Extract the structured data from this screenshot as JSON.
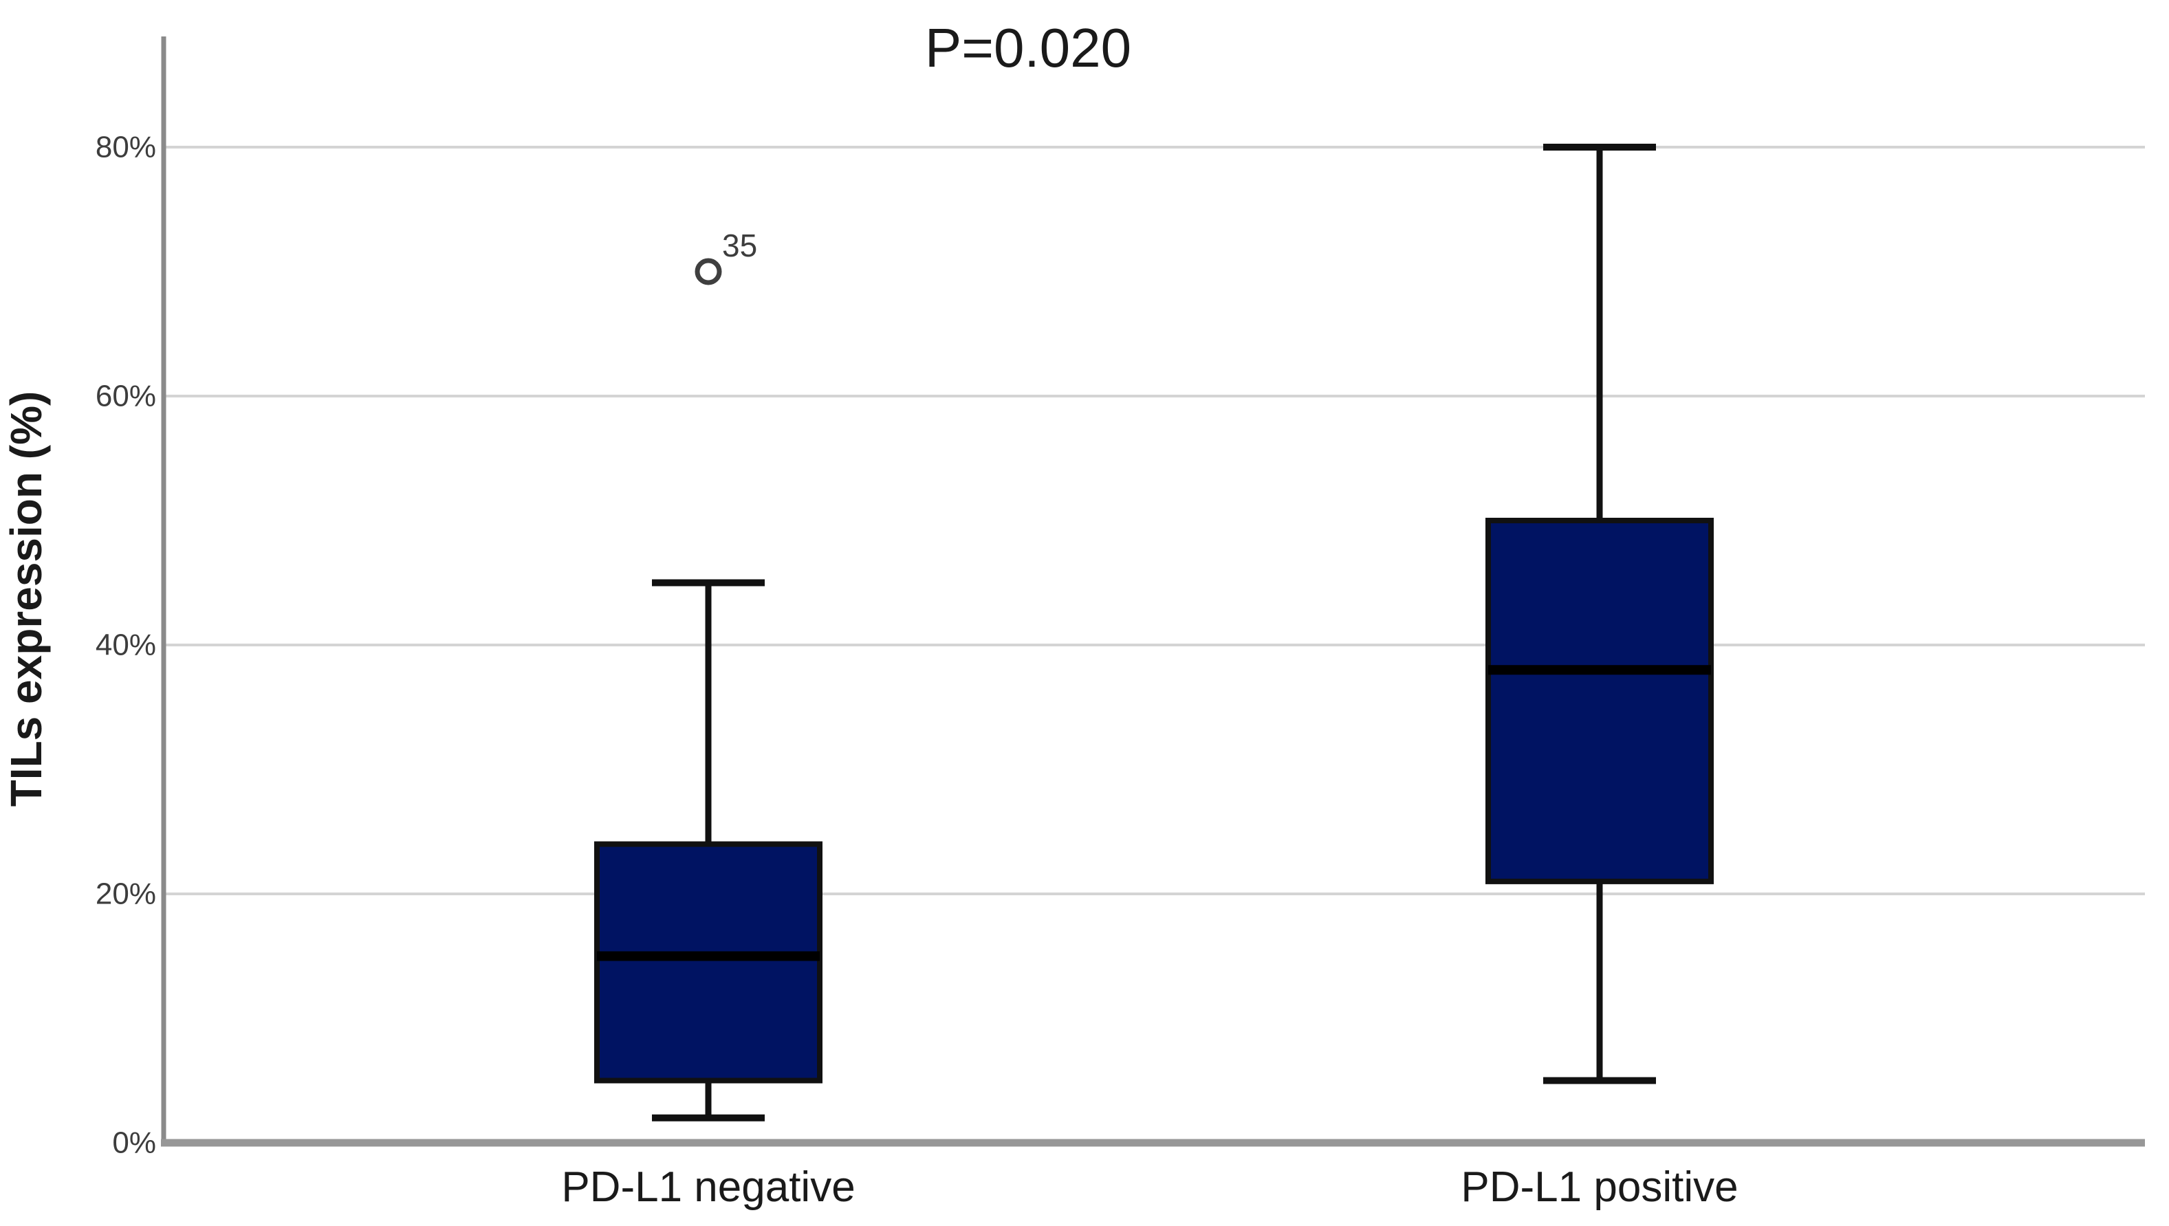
{
  "chart_data": {
    "type": "boxplot",
    "title": "P=0.020",
    "xlabel": "",
    "ylabel": "TILs expression (%)",
    "ylim": [
      0,
      89
    ],
    "yticks": [
      0,
      20,
      40,
      60,
      80
    ],
    "ytick_labels": [
      "0%",
      "20%",
      "40%",
      "60%",
      "80%"
    ],
    "grid": "horizontal-light",
    "legend": "none",
    "categories": [
      "PD-L1 negative",
      "PD-L1 positive"
    ],
    "series": [
      {
        "category": "PD-L1 negative",
        "whisker_low": 2,
        "q1": 5,
        "median": 15,
        "q3": 24,
        "whisker_high": 45,
        "outliers": [
          {
            "value": 70,
            "label": "35"
          }
        ]
      },
      {
        "category": "PD-L1 positive",
        "whisker_low": 5,
        "q1": 21,
        "median": 38,
        "q3": 50,
        "whisker_high": 80,
        "outliers": []
      }
    ],
    "colors": {
      "box_fill": "#001362",
      "box_stroke": "#111111",
      "median_stroke": "#000000",
      "whisker_stroke": "#111111",
      "grid_line": "#d4d4d4",
      "axis_line": "#979797",
      "tick_text": "#3d3d3d",
      "label_text": "#1a1a1a",
      "outlier_stroke": "#3f3f3f",
      "background": "#ffffff"
    }
  }
}
